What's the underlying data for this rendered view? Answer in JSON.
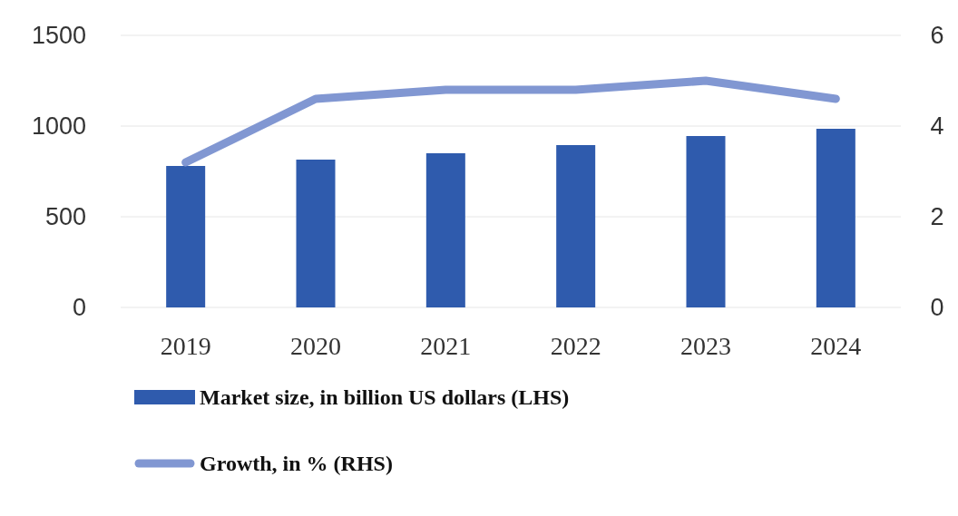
{
  "chart_data": {
    "type": "bar",
    "categories": [
      "2019",
      "2020",
      "2021",
      "2022",
      "2023",
      "2024"
    ],
    "series": [
      {
        "name": "Market size, in billion US dollars (LHS)",
        "color": "#2f5bad",
        "values": [
          780,
          815,
          850,
          895,
          945,
          985
        ]
      },
      {
        "name": "Growth, in % (RHS)",
        "type": "line",
        "axis": "y2",
        "color": "#8197d2",
        "values": [
          3.2,
          4.6,
          4.8,
          4.8,
          5.0,
          4.6
        ]
      }
    ],
    "ylim": [
      0,
      1500
    ],
    "yticks": [
      0,
      500,
      1000,
      1500
    ],
    "y2lim": [
      0,
      6
    ],
    "y2ticks": [
      0,
      2,
      4,
      6
    ],
    "grid": "y",
    "legend": "bottom"
  }
}
